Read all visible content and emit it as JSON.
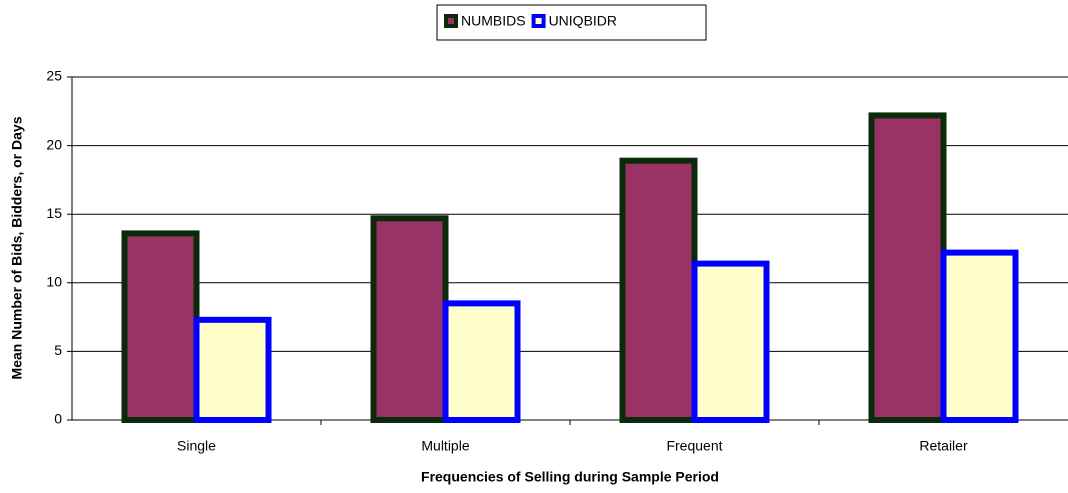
{
  "chart_data": {
    "type": "bar",
    "x_label": "Frequencies of Selling during Sample Period",
    "y_label": "Mean Number of Bids, Bidders, or Days",
    "categories": [
      "Single",
      "Multiple",
      "Frequent",
      "Retailer"
    ],
    "series": [
      {
        "name": "NUMBIDS",
        "color": "#993366",
        "edge": "#0a2a0a",
        "values": [
          13.6,
          14.7,
          18.9,
          22.2
        ]
      },
      {
        "name": "UNIQBIDR",
        "color": "#ffffcc",
        "edge": "#0000ff",
        "values": [
          7.3,
          8.5,
          11.4,
          12.2
        ]
      }
    ],
    "ylim": [
      0,
      25
    ],
    "yticks": [
      0,
      5,
      10,
      15,
      20,
      25
    ],
    "grid": true,
    "legend": "top"
  }
}
